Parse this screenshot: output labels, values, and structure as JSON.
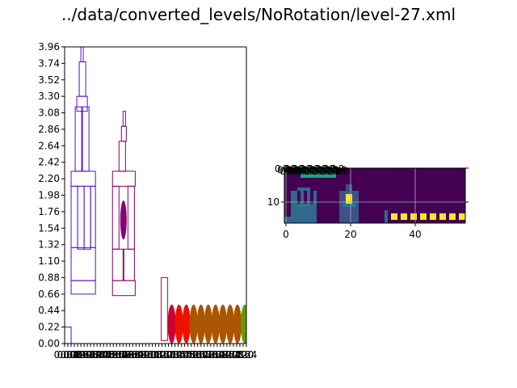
{
  "figure": {
    "title": "../data/converted_levels/NoRotation/level-27.xml"
  },
  "chart_data": [
    {
      "type": "scatter",
      "title": "",
      "xlabel": "",
      "ylabel": "",
      "ylim": [
        0,
        3.96
      ],
      "xlim": [
        0,
        2.24
      ],
      "grid": false,
      "y_ticks": [
        "0.00",
        "0.22",
        "0.44",
        "0.66",
        "0.88",
        "1.10",
        "1.32",
        "1.54",
        "1.76",
        "1.98",
        "2.20",
        "2.42",
        "2.64",
        "2.86",
        "3.08",
        "3.30",
        "3.52",
        "3.74",
        "3.96"
      ],
      "x_ticks": [
        "0.00",
        "0.04",
        "0.08",
        "0.12",
        "0.16",
        "0.20",
        "0.24",
        "0.28",
        "0.32",
        "0.36",
        "0.40",
        "0.44",
        "0.48",
        "0.52",
        "0.56",
        "0.60",
        "0.64",
        "0.68",
        "0.72",
        "0.76",
        "0.80",
        "0.84",
        "0.88",
        "0.92",
        "0.96",
        "1.00",
        "1.04",
        "1.08",
        "1.12",
        "1.16",
        "1.20",
        "1.24",
        "1.28",
        "1.32",
        "1.36",
        "1.40",
        "1.44",
        "1.48",
        "1.52",
        "1.56",
        "1.60",
        "1.64",
        "1.68",
        "1.72",
        "1.76",
        "1.80",
        "1.84",
        "1.88",
        "1.92",
        "1.96",
        "2.00",
        "2.04",
        "2.08",
        "2.12",
        "2.16",
        "2.20",
        "2.24"
      ],
      "rects": [
        {
          "x": 0.0,
          "y": 0.0,
          "w": 0.08,
          "h": 0.22,
          "color": "#2222cc"
        },
        {
          "x": 0.08,
          "y": 0.66,
          "w": 0.3,
          "h": 0.18,
          "color": "#5511cc"
        },
        {
          "x": 0.08,
          "y": 0.84,
          "w": 0.3,
          "h": 0.44,
          "color": "#5511cc"
        },
        {
          "x": 0.08,
          "y": 1.28,
          "w": 0.08,
          "h": 0.82,
          "color": "#5511cc"
        },
        {
          "x": 0.16,
          "y": 1.26,
          "w": 0.08,
          "h": 0.84,
          "color": "#5511cc"
        },
        {
          "x": 0.24,
          "y": 1.26,
          "w": 0.08,
          "h": 0.84,
          "color": "#5511cc"
        },
        {
          "x": 0.32,
          "y": 1.28,
          "w": 0.06,
          "h": 0.82,
          "color": "#5511cc"
        },
        {
          "x": 0.08,
          "y": 2.1,
          "w": 0.3,
          "h": 0.2,
          "color": "#5511cc"
        },
        {
          "x": 0.13,
          "y": 2.3,
          "w": 0.08,
          "h": 0.86,
          "color": "#5511cc"
        },
        {
          "x": 0.22,
          "y": 2.3,
          "w": 0.08,
          "h": 0.86,
          "color": "#5511cc"
        },
        {
          "x": 0.15,
          "y": 3.1,
          "w": 0.13,
          "h": 0.2,
          "color": "#5511cc"
        },
        {
          "x": 0.18,
          "y": 3.3,
          "w": 0.08,
          "h": 0.46,
          "color": "#5511cc"
        },
        {
          "x": 0.2,
          "y": 3.76,
          "w": 0.03,
          "h": 0.22,
          "color": "#5511cc"
        },
        {
          "x": 0.59,
          "y": 0.64,
          "w": 0.28,
          "h": 0.2,
          "color": "#880066"
        },
        {
          "x": 0.59,
          "y": 0.84,
          "w": 0.14,
          "h": 0.42,
          "color": "#880066"
        },
        {
          "x": 0.72,
          "y": 0.84,
          "w": 0.14,
          "h": 0.42,
          "color": "#880066"
        },
        {
          "x": 0.59,
          "y": 1.26,
          "w": 0.08,
          "h": 0.84,
          "color": "#880066"
        },
        {
          "x": 0.78,
          "y": 1.26,
          "w": 0.08,
          "h": 0.84,
          "color": "#880066"
        },
        {
          "x": 0.59,
          "y": 2.1,
          "w": 0.28,
          "h": 0.2,
          "color": "#880066"
        },
        {
          "x": 0.67,
          "y": 2.3,
          "w": 0.08,
          "h": 0.4,
          "color": "#880066"
        },
        {
          "x": 0.7,
          "y": 2.7,
          "w": 0.06,
          "h": 0.2,
          "color": "#880066"
        },
        {
          "x": 0.72,
          "y": 2.9,
          "w": 0.03,
          "h": 0.2,
          "color": "#880066"
        },
        {
          "x": 1.19,
          "y": 0.04,
          "w": 0.08,
          "h": 0.84,
          "color": "#cc0044"
        }
      ],
      "ellipses": [
        {
          "cx": 0.725,
          "cy": 1.65,
          "rx": 0.04,
          "ry": 0.26,
          "color": "#880077"
        },
        {
          "cx": 1.32,
          "cy": 0.26,
          "rx": 0.05,
          "ry": 0.26,
          "color": "#cc0033"
        },
        {
          "cx": 1.41,
          "cy": 0.26,
          "rx": 0.05,
          "ry": 0.26,
          "color": "#ee1100"
        },
        {
          "cx": 1.5,
          "cy": 0.26,
          "rx": 0.05,
          "ry": 0.26,
          "color": "#ee1100"
        },
        {
          "cx": 1.59,
          "cy": 0.26,
          "rx": 0.05,
          "ry": 0.26,
          "color": "#aa5500"
        },
        {
          "cx": 1.68,
          "cy": 0.26,
          "rx": 0.05,
          "ry": 0.26,
          "color": "#aa5500"
        },
        {
          "cx": 1.77,
          "cy": 0.26,
          "rx": 0.05,
          "ry": 0.26,
          "color": "#aa5500"
        },
        {
          "cx": 1.86,
          "cy": 0.26,
          "rx": 0.05,
          "ry": 0.26,
          "color": "#aa5500"
        },
        {
          "cx": 1.95,
          "cy": 0.26,
          "rx": 0.05,
          "ry": 0.26,
          "color": "#aa5500"
        },
        {
          "cx": 2.04,
          "cy": 0.26,
          "rx": 0.05,
          "ry": 0.26,
          "color": "#aa5500"
        },
        {
          "cx": 2.13,
          "cy": 0.26,
          "rx": 0.05,
          "ry": 0.26,
          "color": "#aa5500"
        },
        {
          "cx": 2.22,
          "cy": 0.26,
          "rx": 0.05,
          "ry": 0.26,
          "color": "#669900"
        }
      ]
    },
    {
      "type": "heatmap",
      "title": "",
      "xlabel": "",
      "ylabel": "",
      "xlim": [
        -0.5,
        55.5
      ],
      "ylim": [
        16.5,
        -0.5
      ],
      "grid": true,
      "x_ticks": [
        "0",
        "20",
        "40"
      ],
      "x_tick_values": [
        0,
        20,
        40
      ],
      "y_ticks": [
        "10"
      ],
      "y_tick_values": [
        10
      ],
      "overlapping_top_tick_labels": "0.0",
      "background_color": "#440154",
      "cells": [
        {
          "x": 2,
          "y": 7,
          "w": 8,
          "h": 10,
          "color": "#31688e"
        },
        {
          "x": 4,
          "y": 6,
          "w": 4,
          "h": 1,
          "color": "#31688e"
        },
        {
          "x": 4,
          "y": 7,
          "w": 1,
          "h": 4,
          "color": "#440154"
        },
        {
          "x": 6,
          "y": 7,
          "w": 1,
          "h": 4,
          "color": "#440154"
        },
        {
          "x": 8,
          "y": 7,
          "w": 1,
          "h": 4,
          "color": "#440154"
        },
        {
          "x": 4,
          "y": 11,
          "w": 4,
          "h": 1,
          "color": "#2a788e"
        },
        {
          "x": 5,
          "y": 0,
          "w": 11,
          "h": 3,
          "color": "#1f9e89"
        },
        {
          "x": 0,
          "y": 15,
          "w": 2,
          "h": 2,
          "color": "#31688e"
        },
        {
          "x": 17,
          "y": 7,
          "w": 6,
          "h": 10,
          "color": "#3b528b"
        },
        {
          "x": 19,
          "y": 8,
          "w": 2,
          "h": 3,
          "color": "#fde725"
        },
        {
          "x": 19,
          "y": 5,
          "w": 2,
          "h": 2,
          "color": "#3b528b"
        },
        {
          "x": 18,
          "y": 11,
          "w": 4,
          "h": 1,
          "color": "#2a788e"
        },
        {
          "x": 31,
          "y": 13,
          "w": 1,
          "h": 4,
          "color": "#31688e"
        },
        {
          "x": 33,
          "y": 14,
          "w": 2,
          "h": 2,
          "color": "#fde725"
        },
        {
          "x": 36,
          "y": 14,
          "w": 2,
          "h": 2,
          "color": "#fde725"
        },
        {
          "x": 39,
          "y": 14,
          "w": 2,
          "h": 2,
          "color": "#fde725"
        },
        {
          "x": 42,
          "y": 14,
          "w": 2,
          "h": 2,
          "color": "#fde725"
        },
        {
          "x": 45,
          "y": 14,
          "w": 2,
          "h": 2,
          "color": "#fde725"
        },
        {
          "x": 48,
          "y": 14,
          "w": 2,
          "h": 2,
          "color": "#fde725"
        },
        {
          "x": 51,
          "y": 14,
          "w": 2,
          "h": 2,
          "color": "#fde725"
        },
        {
          "x": 54,
          "y": 14,
          "w": 2,
          "h": 2,
          "color": "#fde725"
        }
      ]
    }
  ]
}
